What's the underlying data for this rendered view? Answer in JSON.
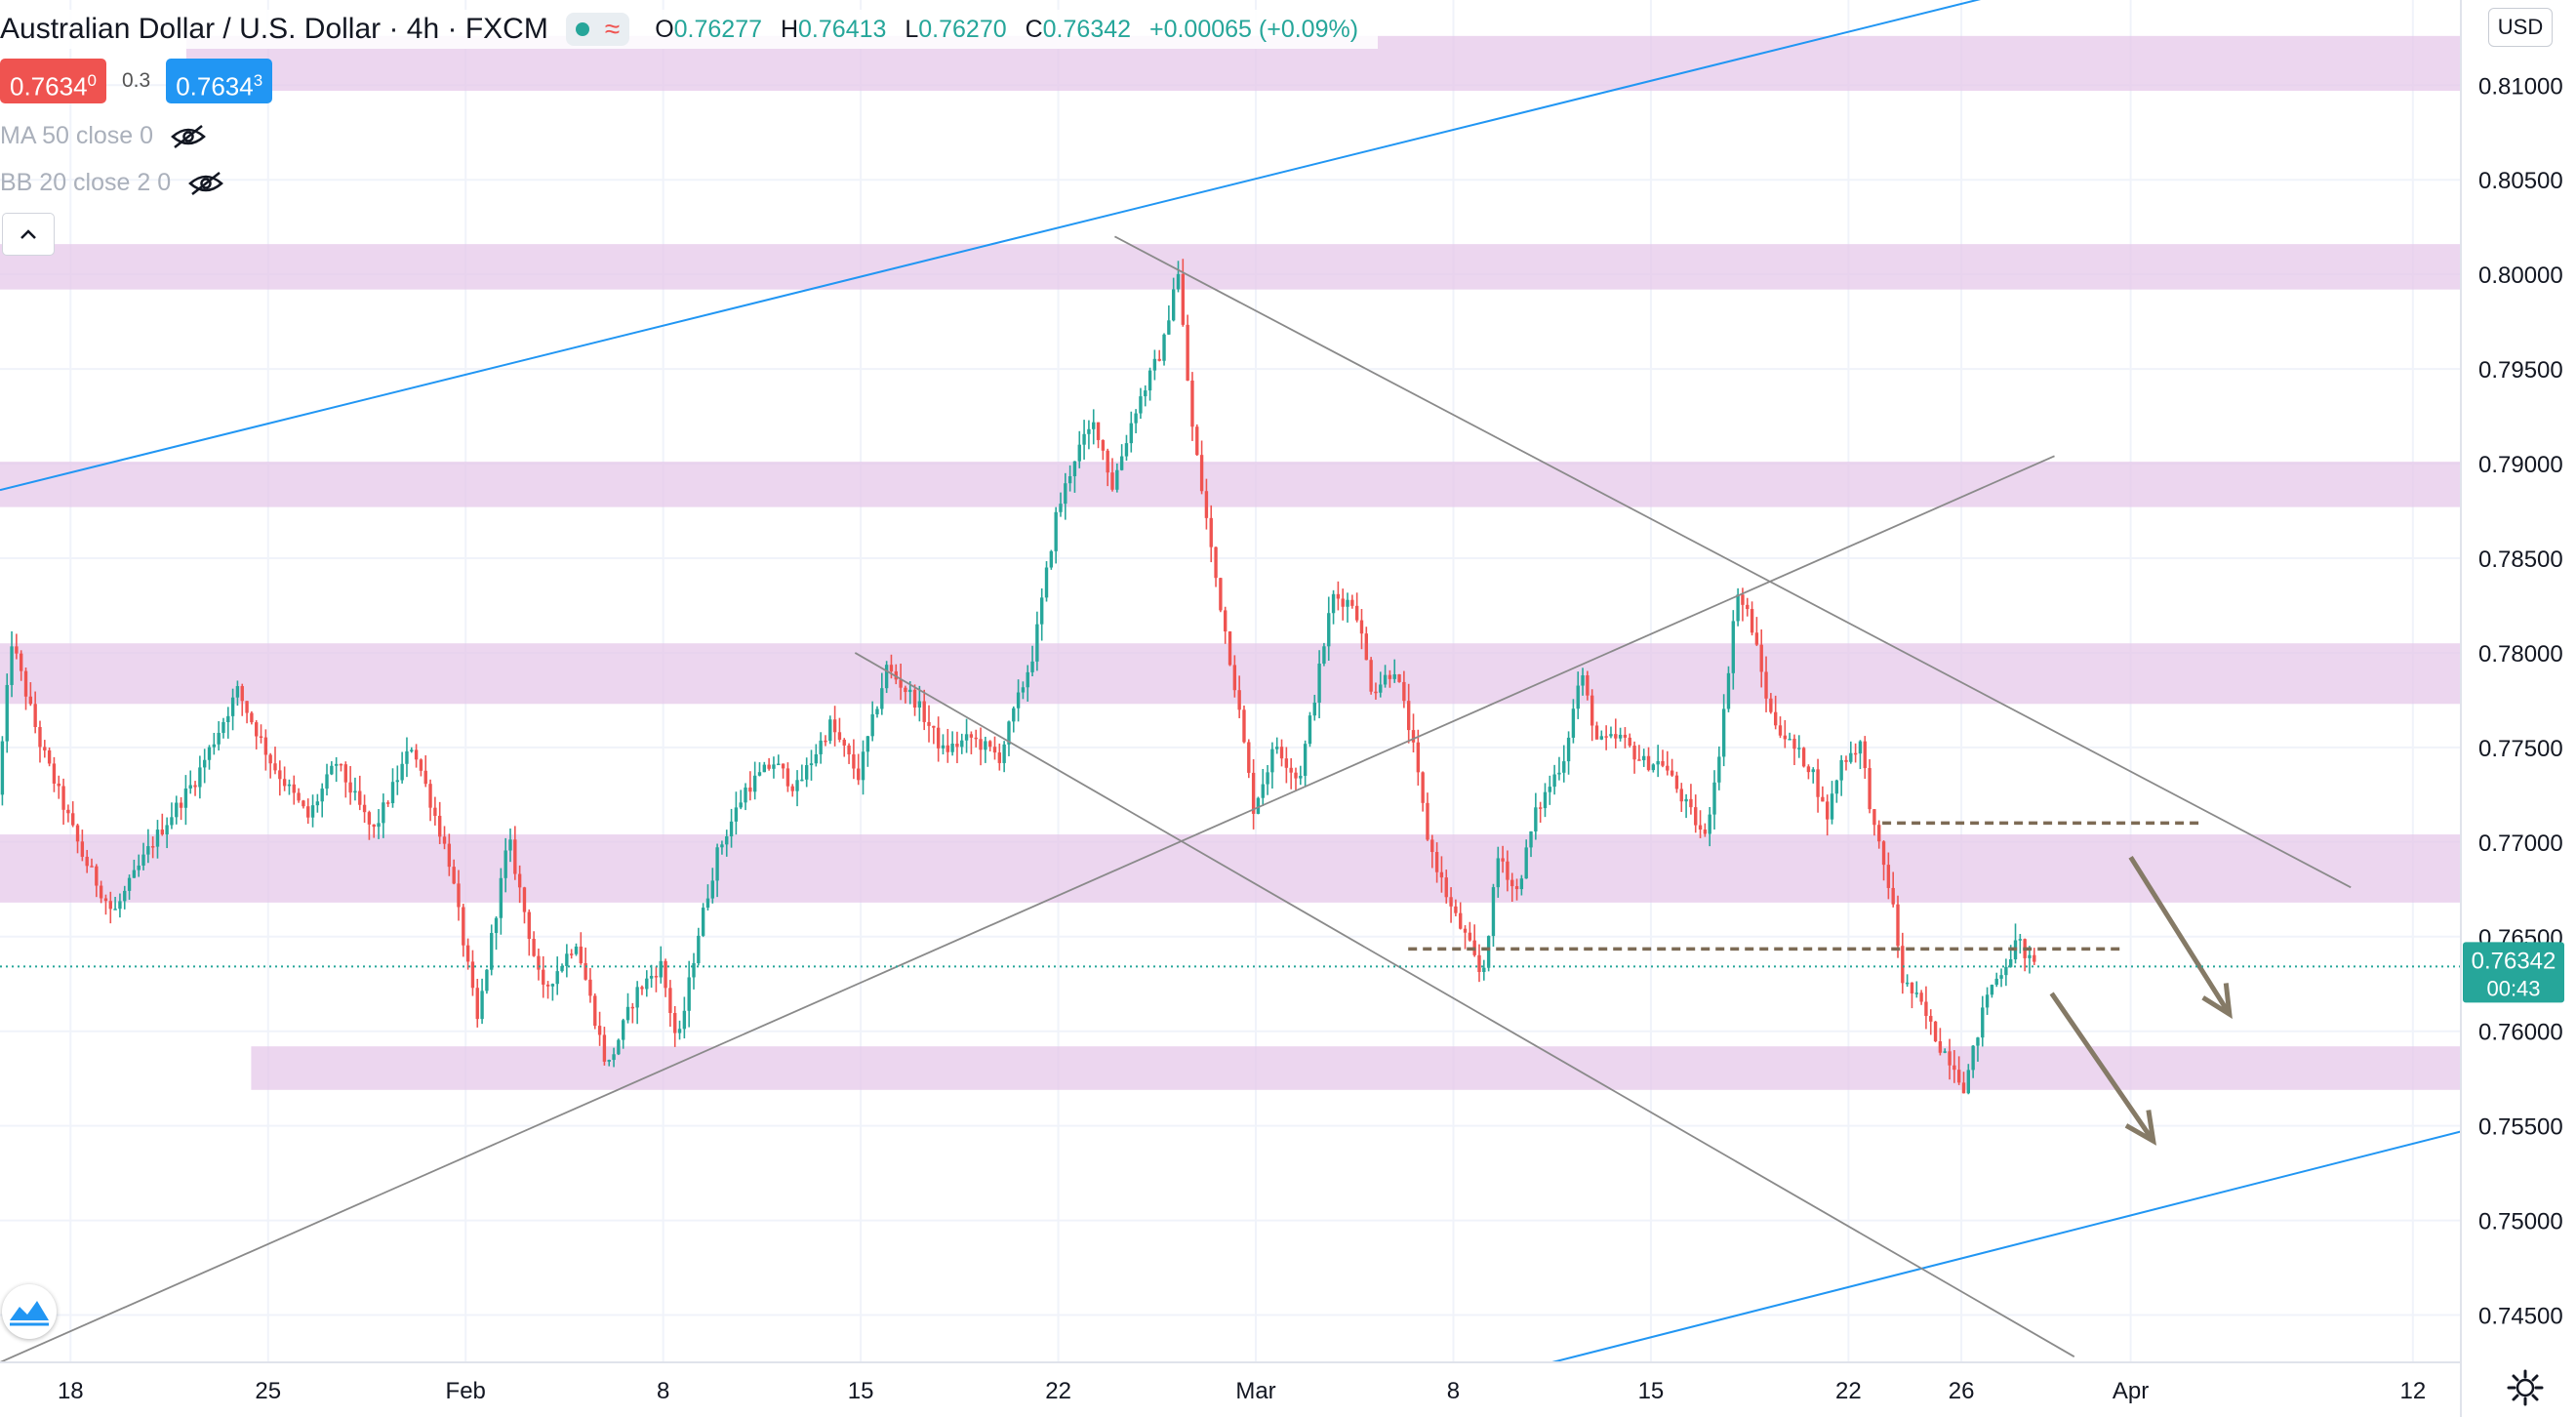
{
  "header": {
    "title": "Australian Dollar / U.S. Dollar · 4h · FXCM",
    "ohlc": [
      {
        "key": "O",
        "value": "0.76277"
      },
      {
        "key": "H",
        "value": "0.76413"
      },
      {
        "key": "L",
        "value": "0.76270"
      },
      {
        "key": "C",
        "value": "0.76342"
      }
    ],
    "change": "+0.00065 (+0.09%)",
    "sell_price_main": "0.7634",
    "sell_price_small": "0",
    "spread": "0.3",
    "buy_price_main": "0.7634",
    "buy_price_small": "3",
    "indicator_1": "MA 50 close 0",
    "indicator_2": "BB 20 close 2 0",
    "currency": "USD",
    "current_price_label": "0.76342",
    "countdown": "00:43"
  },
  "icons": {
    "status_dot": "market-open-dot-icon",
    "wave": "data-wave-icon",
    "eye": "eye-hidden-icon",
    "collapse": "chevron-up-icon",
    "logo": "tradingview-logo-icon",
    "settings": "gear-icon"
  },
  "colors": {
    "up": "#26a69a",
    "down": "#ef5350",
    "zone": "#e6c8ea",
    "channel": "#2196f3",
    "trendline": "#8a8a8a",
    "dashed": "#7d6b55",
    "arrow": "#857a66"
  },
  "chart_data": {
    "type": "candlestick",
    "title": "Australian Dollar / U.S. Dollar · 4h · FXCM",
    "ylim": [
      0.7425,
      0.8145
    ],
    "y_ticks": [
      "0.81000",
      "0.80500",
      "0.80000",
      "0.79500",
      "0.79000",
      "0.78500",
      "0.78000",
      "0.77500",
      "0.77000",
      "0.76500",
      "0.76000",
      "0.75500",
      "0.75000",
      "0.74500"
    ],
    "x_tick_labels": [
      "18",
      "25",
      "Feb",
      "8",
      "15",
      "22",
      "Mar",
      "8",
      "15",
      "22",
      "26",
      "Apr",
      "12"
    ],
    "x_ticks_day_index": [
      0,
      7,
      14,
      21,
      28,
      35,
      42,
      49,
      56,
      63,
      67,
      73,
      83
    ],
    "x_day_range": [
      -2.5,
      84.7
    ],
    "grid": true,
    "supply_demand_zones": [
      {
        "low": 0.8097,
        "high": 0.8126
      },
      {
        "low": 0.7992,
        "high": 0.8016
      },
      {
        "low": 0.7877,
        "high": 0.7901
      },
      {
        "low": 0.7773,
        "high": 0.7805
      },
      {
        "low": 0.7668,
        "high": 0.7704
      },
      {
        "low": 0.7569,
        "high": 0.7592
      }
    ],
    "channel_lines": [
      {
        "from": [
          -2.5,
          0.7886
        ],
        "to": [
          68.9,
          0.815
        ]
      },
      {
        "from": [
          52.5,
          0.7425
        ],
        "to": [
          84.7,
          0.7547
        ]
      }
    ],
    "trend_lines": [
      {
        "from": [
          -2.5,
          0.7425
        ],
        "to": [
          70.3,
          0.7904
        ]
      },
      {
        "from": [
          37.0,
          0.802
        ],
        "to": [
          80.8,
          0.7676
        ]
      },
      {
        "from": [
          27.8,
          0.78
        ],
        "to": [
          71.0,
          0.7428
        ]
      }
    ],
    "dashed_levels": [
      {
        "from": [
          47.4,
          0.76435
        ],
        "to": [
          72.8,
          0.76435
        ]
      },
      {
        "from": [
          64.2,
          0.771
        ],
        "to": [
          75.5,
          0.771
        ]
      }
    ],
    "projection_arrows": [
      {
        "from": [
          73.0,
          0.7692
        ],
        "to": [
          76.5,
          0.7609
        ]
      },
      {
        "from": [
          70.2,
          0.762
        ],
        "to": [
          73.8,
          0.7542
        ]
      }
    ],
    "current_price": 0.76342,
    "anchors": [
      [
        -2.5,
        0.7725
      ],
      [
        -2.0,
        0.7806
      ],
      [
        -1.0,
        0.7752
      ],
      [
        0.5,
        0.7693
      ],
      [
        1.6,
        0.7662
      ],
      [
        3.0,
        0.77
      ],
      [
        4.5,
        0.7733
      ],
      [
        6.0,
        0.778
      ],
      [
        7.2,
        0.7742
      ],
      [
        8.5,
        0.7713
      ],
      [
        9.5,
        0.7742
      ],
      [
        10.8,
        0.7705
      ],
      [
        12.2,
        0.7752
      ],
      [
        13.5,
        0.769
      ],
      [
        14.5,
        0.7605
      ],
      [
        15.6,
        0.7702
      ],
      [
        16.8,
        0.762
      ],
      [
        18.0,
        0.7648
      ],
      [
        19.1,
        0.758
      ],
      [
        20.1,
        0.762
      ],
      [
        21.0,
        0.7635
      ],
      [
        21.6,
        0.7592
      ],
      [
        22.3,
        0.765
      ],
      [
        23.0,
        0.7694
      ],
      [
        24.0,
        0.7728
      ],
      [
        25.0,
        0.7742
      ],
      [
        25.8,
        0.7728
      ],
      [
        27.0,
        0.7762
      ],
      [
        28.0,
        0.7735
      ],
      [
        29.0,
        0.7792
      ],
      [
        30.0,
        0.7775
      ],
      [
        31.0,
        0.7748
      ],
      [
        32.0,
        0.7755
      ],
      [
        33.0,
        0.7745
      ],
      [
        34.2,
        0.78
      ],
      [
        35.0,
        0.7872
      ],
      [
        35.7,
        0.7905
      ],
      [
        36.4,
        0.7922
      ],
      [
        37.0,
        0.7888
      ],
      [
        37.8,
        0.7928
      ],
      [
        38.8,
        0.7962
      ],
      [
        39.3,
        0.8005
      ],
      [
        39.8,
        0.7922
      ],
      [
        40.6,
        0.7845
      ],
      [
        41.4,
        0.7778
      ],
      [
        42.0,
        0.7718
      ],
      [
        42.8,
        0.7752
      ],
      [
        43.6,
        0.7732
      ],
      [
        44.3,
        0.7788
      ],
      [
        44.8,
        0.783
      ],
      [
        45.6,
        0.7826
      ],
      [
        46.2,
        0.778
      ],
      [
        47.0,
        0.7792
      ],
      [
        47.6,
        0.7755
      ],
      [
        48.2,
        0.77
      ],
      [
        49.0,
        0.7665
      ],
      [
        49.6,
        0.7647
      ],
      [
        50.1,
        0.7627
      ],
      [
        50.7,
        0.7695
      ],
      [
        51.3,
        0.7672
      ],
      [
        52.0,
        0.7715
      ],
      [
        53.0,
        0.7745
      ],
      [
        53.6,
        0.779
      ],
      [
        54.2,
        0.7752
      ],
      [
        55.0,
        0.7755
      ],
      [
        55.8,
        0.7742
      ],
      [
        56.5,
        0.7742
      ],
      [
        57.3,
        0.772
      ],
      [
        58.0,
        0.7702
      ],
      [
        58.6,
        0.7758
      ],
      [
        59.1,
        0.7832
      ],
      [
        59.6,
        0.7818
      ],
      [
        60.3,
        0.7768
      ],
      [
        61.0,
        0.7752
      ],
      [
        61.8,
        0.7738
      ],
      [
        62.3,
        0.7712
      ],
      [
        62.8,
        0.7742
      ],
      [
        63.5,
        0.7752
      ],
      [
        64.0,
        0.7706
      ],
      [
        64.6,
        0.7672
      ],
      [
        65.0,
        0.7627
      ],
      [
        65.6,
        0.7615
      ],
      [
        66.3,
        0.7593
      ],
      [
        66.8,
        0.7583
      ],
      [
        67.2,
        0.757
      ],
      [
        67.6,
        0.7595
      ],
      [
        68.0,
        0.762
      ],
      [
        68.5,
        0.7632
      ],
      [
        69.1,
        0.7648
      ],
      [
        69.6,
        0.7634
      ]
    ]
  }
}
